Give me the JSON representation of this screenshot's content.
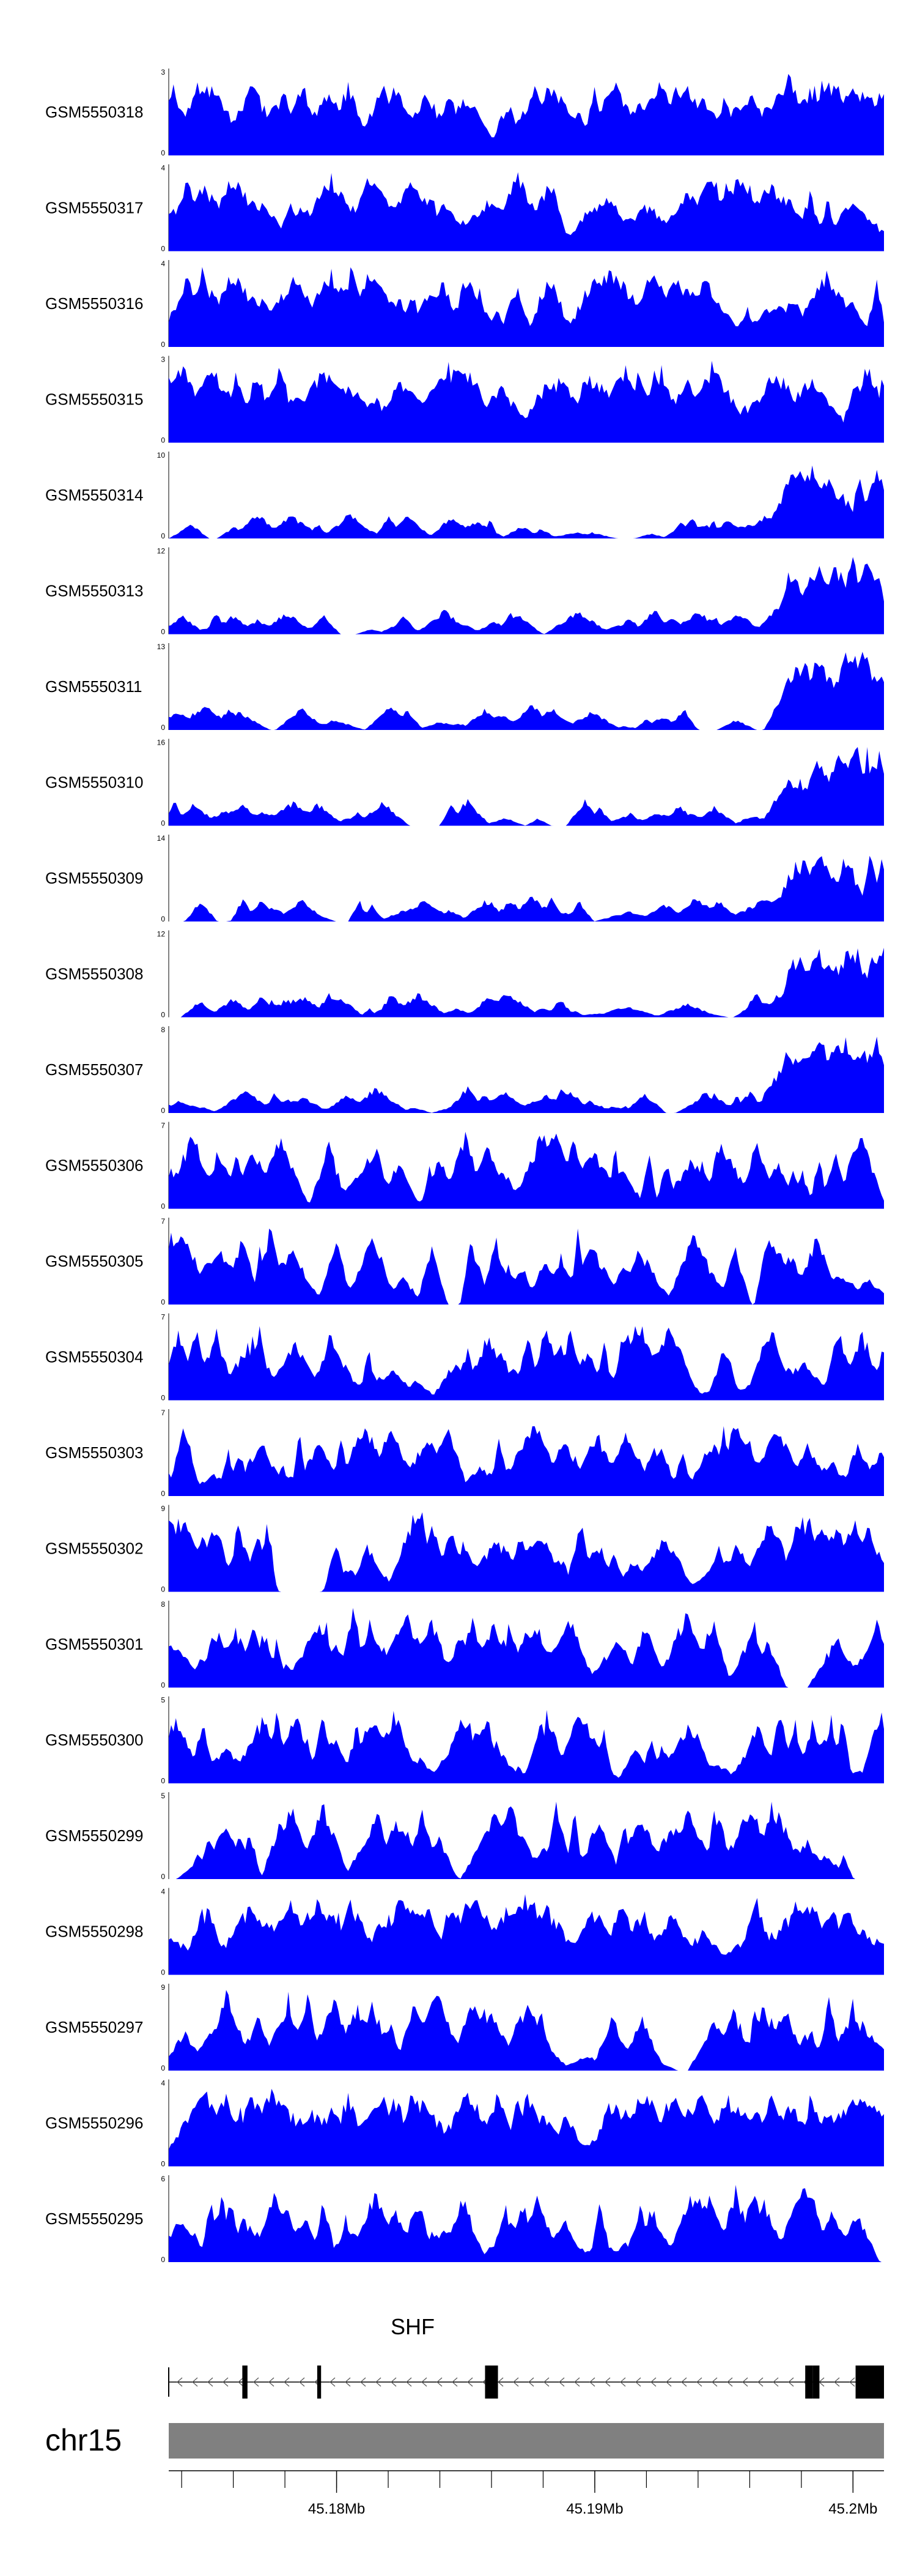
{
  "chart_data": {
    "type": "area",
    "xlabel": "",
    "xlim": [
      45.1735,
      45.2012
    ],
    "x_ticks": [
      {
        "value": 45.18,
        "label": "45.18Mb"
      },
      {
        "value": 45.19,
        "label": "45.19Mb"
      },
      {
        "value": 45.2,
        "label": "45.2Mb"
      }
    ],
    "minor_ticks": [
      45.174,
      45.176,
      45.178,
      45.18,
      45.182,
      45.184,
      45.186,
      45.188,
      45.19,
      45.192,
      45.194,
      45.196,
      45.198,
      45.2
    ],
    "fill_color": "#0000ff",
    "tracks": [
      {
        "name": "GSM5550318",
        "ymax": "3",
        "ymin": "0",
        "max": 3,
        "seed": 318,
        "profile": "uniform"
      },
      {
        "name": "GSM5550317",
        "ymax": "4",
        "ymin": "0",
        "max": 4,
        "seed": 317,
        "profile": "uniform"
      },
      {
        "name": "GSM5550316",
        "ymax": "4",
        "ymin": "0",
        "max": 4,
        "seed": 316,
        "profile": "uniform"
      },
      {
        "name": "GSM5550315",
        "ymax": "3",
        "ymin": "0",
        "max": 3,
        "seed": 315,
        "profile": "uniform"
      },
      {
        "name": "GSM5550314",
        "ymax": "10",
        "ymin": "0",
        "max": 10,
        "seed": 314,
        "profile": "right"
      },
      {
        "name": "GSM5550313",
        "ymax": "12",
        "ymin": "0",
        "max": 12,
        "seed": 313,
        "profile": "right"
      },
      {
        "name": "GSM5550311",
        "ymax": "13",
        "ymin": "0",
        "max": 13,
        "seed": 311,
        "profile": "right"
      },
      {
        "name": "GSM5550310",
        "ymax": "16",
        "ymin": "0",
        "max": 16,
        "seed": 310,
        "profile": "right"
      },
      {
        "name": "GSM5550309",
        "ymax": "14",
        "ymin": "0",
        "max": 14,
        "seed": 309,
        "profile": "right"
      },
      {
        "name": "GSM5550308",
        "ymax": "12",
        "ymin": "0",
        "max": 12,
        "seed": 308,
        "profile": "right"
      },
      {
        "name": "GSM5550307",
        "ymax": "8",
        "ymin": "0",
        "max": 8,
        "seed": 307,
        "profile": "right"
      },
      {
        "name": "GSM5550306",
        "ymax": "7",
        "ymin": "0",
        "max": 7,
        "seed": 306,
        "profile": "spiky"
      },
      {
        "name": "GSM5550305",
        "ymax": "7",
        "ymin": "0",
        "max": 7,
        "seed": 305,
        "profile": "spiky"
      },
      {
        "name": "GSM5550304",
        "ymax": "7",
        "ymin": "0",
        "max": 7,
        "seed": 304,
        "profile": "spiky"
      },
      {
        "name": "GSM5550303",
        "ymax": "7",
        "ymin": "0",
        "max": 7,
        "seed": 303,
        "profile": "spiky"
      },
      {
        "name": "GSM5550302",
        "ymax": "9",
        "ymin": "0",
        "max": 9,
        "seed": 302,
        "profile": "spiky"
      },
      {
        "name": "GSM5550301",
        "ymax": "8",
        "ymin": "0",
        "max": 8,
        "seed": 301,
        "profile": "spiky"
      },
      {
        "name": "GSM5550300",
        "ymax": "5",
        "ymin": "0",
        "max": 5,
        "seed": 300,
        "profile": "spiky"
      },
      {
        "name": "GSM5550299",
        "ymax": "5",
        "ymin": "0",
        "max": 5,
        "seed": 299,
        "profile": "spiky"
      },
      {
        "name": "GSM5550298",
        "ymax": "4",
        "ymin": "0",
        "max": 4,
        "seed": 298,
        "profile": "dense"
      },
      {
        "name": "GSM5550297",
        "ymax": "9",
        "ymin": "0",
        "max": 9,
        "seed": 297,
        "profile": "spiky"
      },
      {
        "name": "GSM5550296",
        "ymax": "4",
        "ymin": "0",
        "max": 4,
        "seed": 296,
        "profile": "dense"
      },
      {
        "name": "GSM5550295",
        "ymax": "6",
        "ymin": "0",
        "max": 6,
        "seed": 295,
        "profile": "spiky"
      }
    ],
    "gene": {
      "name": "SHF",
      "strand": "-",
      "start": 45.1735,
      "end": 45.2012,
      "exons": [
        {
          "start": 45.17635,
          "end": 45.17655
        },
        {
          "start": 45.17925,
          "end": 45.1794
        },
        {
          "start": 45.18575,
          "end": 45.18625
        },
        {
          "start": 45.19815,
          "end": 45.19845
        },
        {
          "start": 45.19845,
          "end": 45.1987
        },
        {
          "start": 45.2001,
          "end": 45.2012
        }
      ]
    },
    "chromosome": {
      "label": "chr15",
      "color": "#808080"
    }
  }
}
